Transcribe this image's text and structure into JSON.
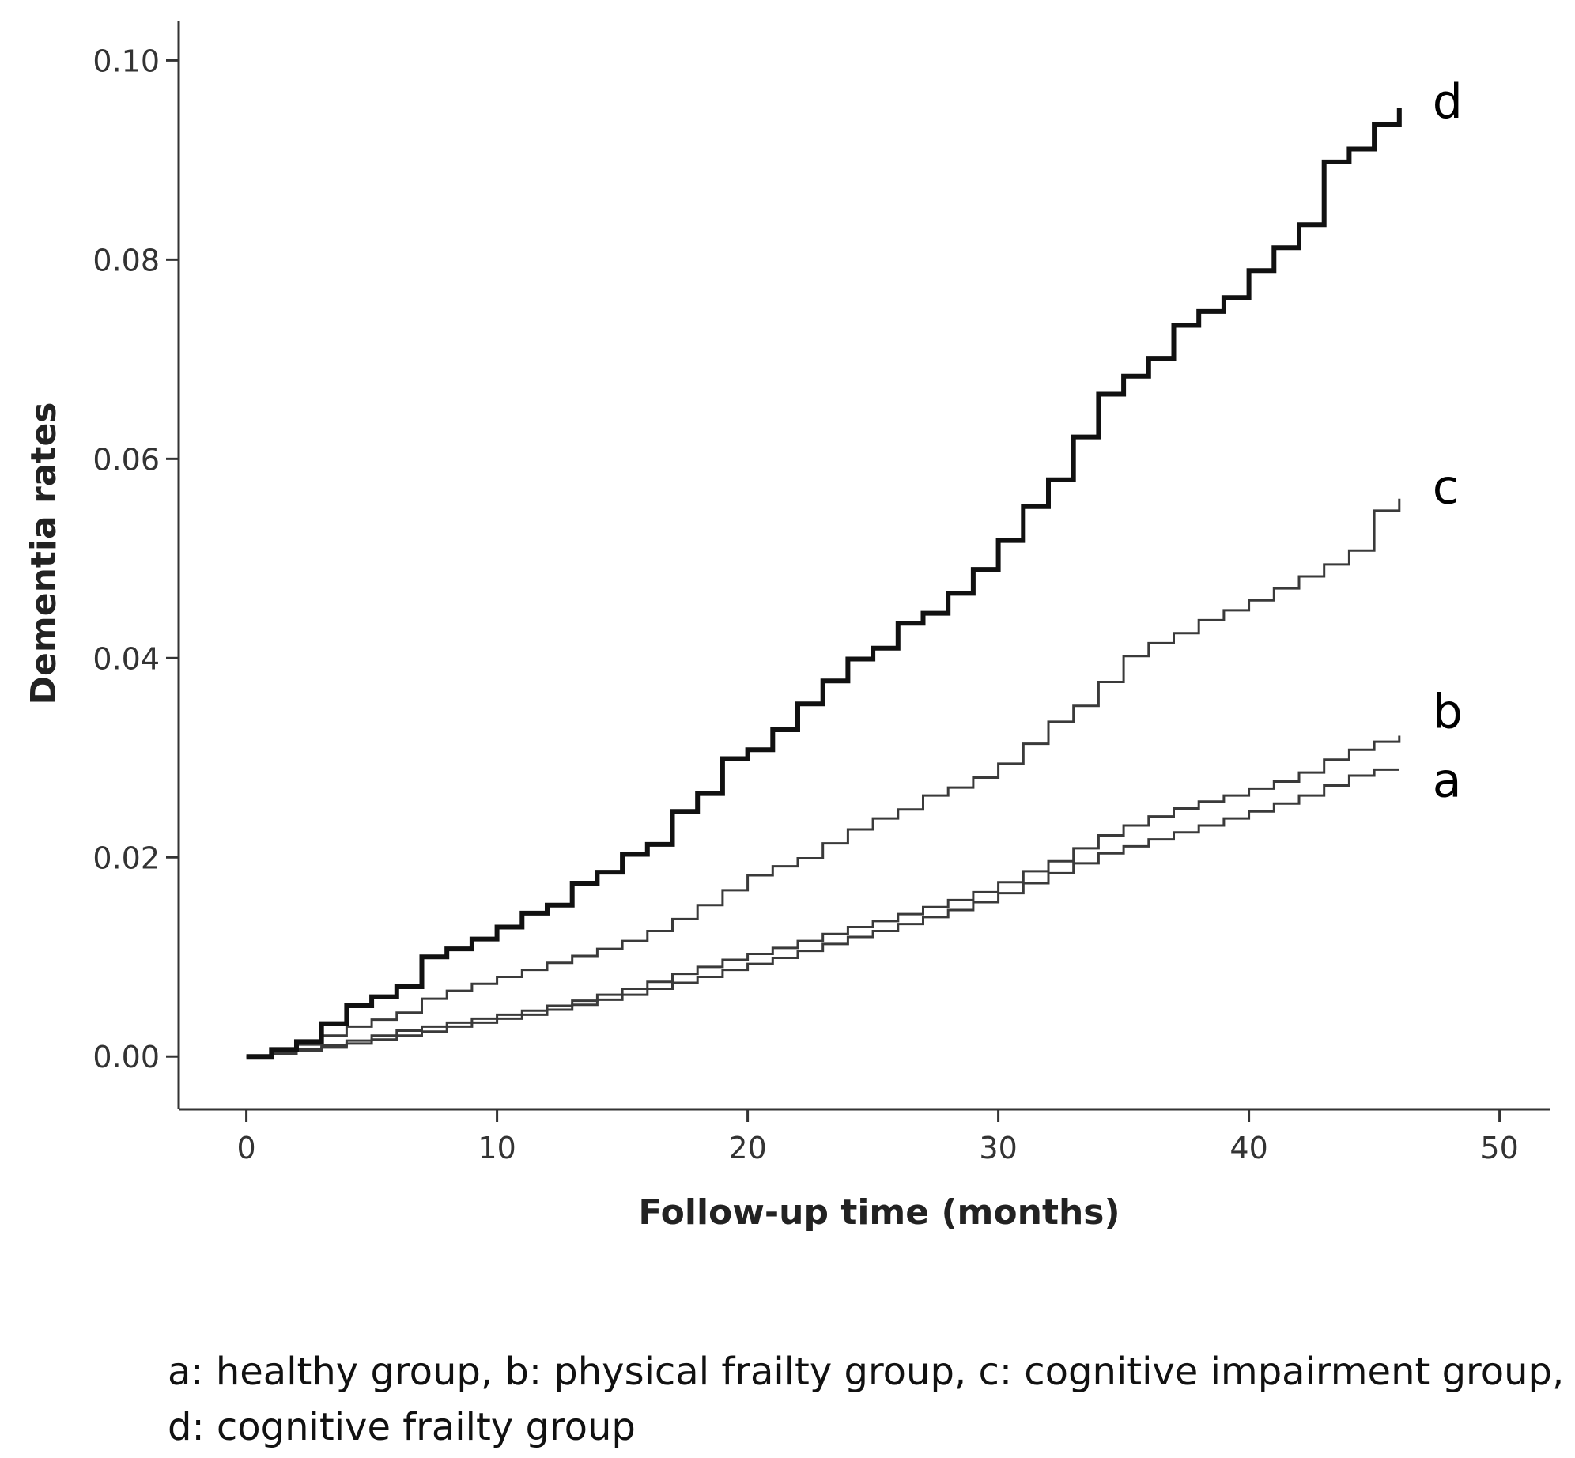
{
  "chart_data": {
    "type": "line",
    "step": true,
    "xlabel": "Follow-up time (months)",
    "ylabel": "Dementia rates",
    "xlim": [
      -2.7,
      52
    ],
    "ylim": [
      -0.0053,
      0.104
    ],
    "xticks": [
      0,
      10,
      20,
      30,
      40,
      50
    ],
    "xtick_labels": [
      "0",
      "10",
      "20",
      "30",
      "40",
      "50"
    ],
    "yticks": [
      0.0,
      0.02,
      0.04,
      0.06,
      0.08,
      0.1
    ],
    "ytick_labels": [
      "0.00",
      "0.02",
      "0.04",
      "0.06",
      "0.08",
      "0.10"
    ],
    "grid": false,
    "series": [
      {
        "name": "a",
        "label": "a",
        "group": "healthy group",
        "color": "#3a3a3a",
        "weight": "thin",
        "x": [
          0,
          1,
          2,
          3,
          4,
          5,
          6,
          7,
          8,
          9,
          10,
          11,
          12,
          13,
          14,
          15,
          16,
          17,
          18,
          19,
          20,
          21,
          22,
          23,
          24,
          25,
          26,
          27,
          28,
          29,
          30,
          31,
          32,
          33,
          34,
          35,
          36,
          37,
          38,
          39,
          40,
          41,
          42,
          43,
          44,
          45,
          46
        ],
        "values": [
          0.0,
          0.0003,
          0.0006,
          0.0009,
          0.0013,
          0.0017,
          0.0021,
          0.0025,
          0.003,
          0.0034,
          0.0038,
          0.0042,
          0.0047,
          0.0052,
          0.0057,
          0.0062,
          0.0068,
          0.0074,
          0.008,
          0.0087,
          0.0093,
          0.0099,
          0.0106,
          0.0113,
          0.012,
          0.0126,
          0.0133,
          0.014,
          0.0147,
          0.0155,
          0.0164,
          0.0174,
          0.0184,
          0.0194,
          0.0204,
          0.0211,
          0.0218,
          0.0225,
          0.0232,
          0.0239,
          0.0246,
          0.0254,
          0.0262,
          0.0272,
          0.0282,
          0.0288,
          0.0288
        ]
      },
      {
        "name": "b",
        "label": "b",
        "group": "physical frailty group",
        "color": "#3a3a3a",
        "weight": "thin",
        "x": [
          0,
          1,
          2,
          3,
          4,
          5,
          6,
          7,
          8,
          9,
          10,
          11,
          12,
          13,
          14,
          15,
          16,
          17,
          18,
          19,
          20,
          21,
          22,
          23,
          24,
          25,
          26,
          27,
          28,
          29,
          30,
          31,
          32,
          33,
          34,
          35,
          36,
          37,
          38,
          39,
          40,
          41,
          42,
          43,
          44,
          45,
          46
        ],
        "values": [
          0.0,
          0.0003,
          0.0007,
          0.0011,
          0.0016,
          0.0021,
          0.0026,
          0.003,
          0.0034,
          0.0038,
          0.0042,
          0.0046,
          0.0051,
          0.0056,
          0.0062,
          0.0068,
          0.0075,
          0.0083,
          0.009,
          0.0097,
          0.0103,
          0.0109,
          0.0116,
          0.0123,
          0.013,
          0.0136,
          0.0143,
          0.015,
          0.0157,
          0.0165,
          0.0175,
          0.0186,
          0.0196,
          0.0209,
          0.0222,
          0.0232,
          0.0241,
          0.0249,
          0.0256,
          0.0262,
          0.0269,
          0.0276,
          0.0285,
          0.0298,
          0.0308,
          0.0316,
          0.0322
        ]
      },
      {
        "name": "c",
        "label": "c",
        "group": "cognitive impairment group",
        "color": "#3a3a3a",
        "weight": "thin",
        "x": [
          0,
          1,
          2,
          3,
          4,
          5,
          6,
          7,
          8,
          9,
          10,
          11,
          12,
          13,
          14,
          15,
          16,
          17,
          18,
          19,
          20,
          21,
          22,
          23,
          24,
          25,
          26,
          27,
          28,
          29,
          30,
          31,
          32,
          33,
          34,
          35,
          36,
          37,
          38,
          39,
          40,
          41,
          42,
          43,
          44,
          45,
          46
        ],
        "values": [
          0.0,
          0.0005,
          0.0012,
          0.0021,
          0.003,
          0.0037,
          0.0044,
          0.0058,
          0.0066,
          0.0073,
          0.008,
          0.0087,
          0.0094,
          0.0101,
          0.0108,
          0.0116,
          0.0126,
          0.0138,
          0.0152,
          0.0167,
          0.0182,
          0.0191,
          0.0199,
          0.0214,
          0.0228,
          0.0239,
          0.0248,
          0.0262,
          0.027,
          0.028,
          0.0294,
          0.0314,
          0.0336,
          0.0352,
          0.0376,
          0.0402,
          0.0415,
          0.0425,
          0.0438,
          0.0448,
          0.0458,
          0.047,
          0.0482,
          0.0494,
          0.0508,
          0.0548,
          0.056
        ]
      },
      {
        "name": "d",
        "label": "d",
        "group": "cognitive frailty group",
        "color": "#111111",
        "weight": "thick",
        "x": [
          0,
          1,
          2,
          3,
          4,
          5,
          6,
          7,
          8,
          9,
          10,
          11,
          12,
          13,
          14,
          15,
          16,
          17,
          18,
          19,
          20,
          21,
          22,
          23,
          24,
          25,
          26,
          27,
          28,
          29,
          30,
          31,
          32,
          33,
          34,
          35,
          36,
          37,
          38,
          39,
          40,
          41,
          42,
          43,
          44,
          45,
          46
        ],
        "values": [
          0.0,
          0.0007,
          0.0015,
          0.0033,
          0.0051,
          0.006,
          0.007,
          0.01,
          0.0108,
          0.0118,
          0.013,
          0.0144,
          0.0152,
          0.0174,
          0.0185,
          0.0203,
          0.0213,
          0.0246,
          0.0264,
          0.0299,
          0.0308,
          0.0328,
          0.0354,
          0.0377,
          0.0399,
          0.041,
          0.0435,
          0.0445,
          0.0465,
          0.0489,
          0.0518,
          0.0552,
          0.0579,
          0.0622,
          0.0665,
          0.0683,
          0.0701,
          0.0734,
          0.0748,
          0.0762,
          0.0789,
          0.0812,
          0.0835,
          0.0898,
          0.0911,
          0.0936,
          0.0952
        ]
      }
    ],
    "series_labels": [
      "d",
      "c",
      "b",
      "a"
    ]
  },
  "caption": {
    "line1": "a: healthy group, b: physical frailty group, c: cognitive impairment group,",
    "line2": "d: cognitive frailty group"
  }
}
